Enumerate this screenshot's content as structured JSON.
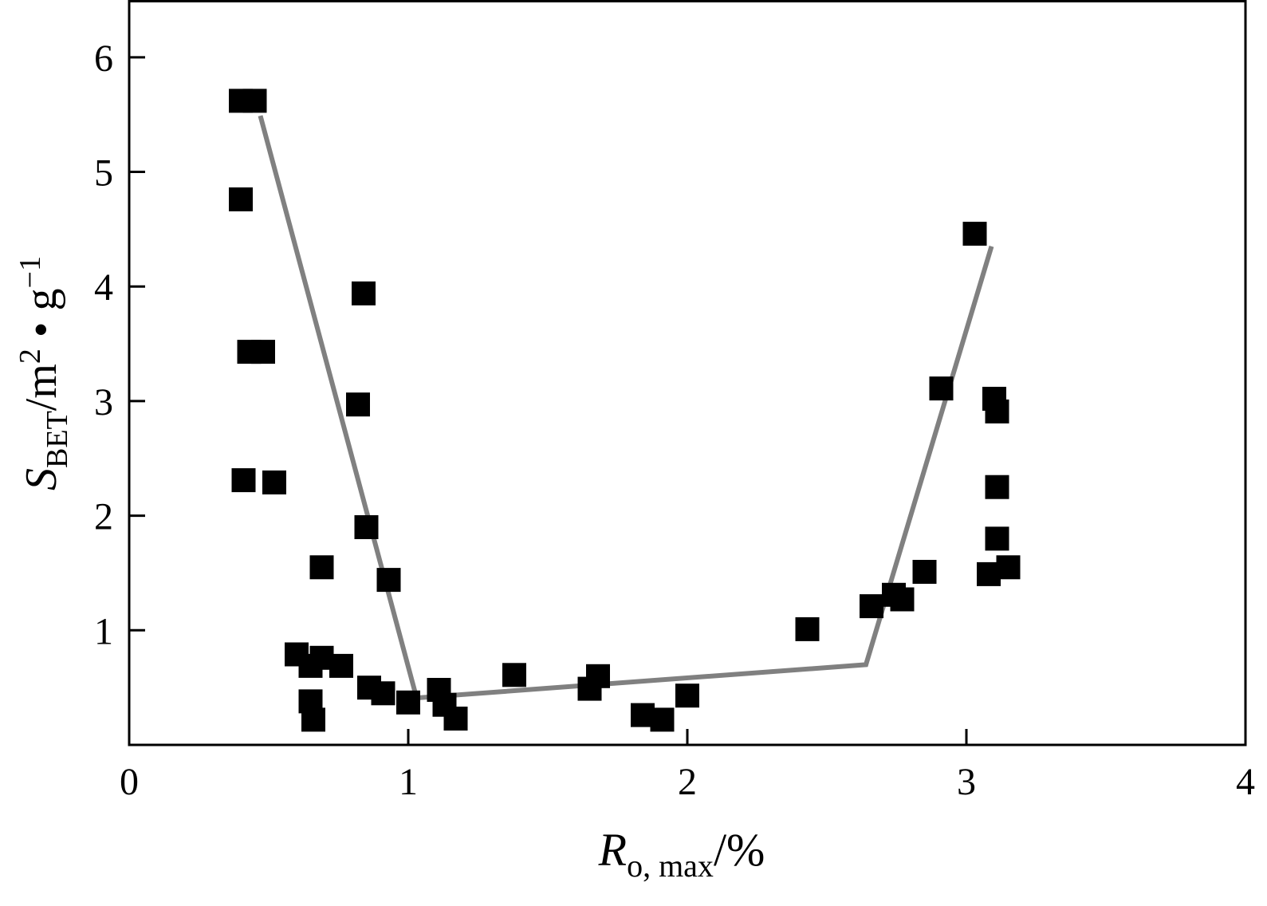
{
  "chart_data": {
    "type": "scatter",
    "xlim": [
      0,
      4
    ],
    "ylim": [
      0,
      6.5
    ],
    "x_ticks": [
      {
        "value": 0,
        "label": "0"
      },
      {
        "value": 1,
        "label": "1"
      },
      {
        "value": 2,
        "label": "2"
      },
      {
        "value": 3,
        "label": "3"
      },
      {
        "value": 4,
        "label": "4"
      }
    ],
    "y_ticks": [
      {
        "value": 1,
        "label": "1"
      },
      {
        "value": 2,
        "label": "2"
      },
      {
        "value": 3,
        "label": "3"
      },
      {
        "value": 4,
        "label": "4"
      },
      {
        "value": 5,
        "label": "5"
      },
      {
        "value": 6,
        "label": "6"
      }
    ],
    "xlabel": {
      "main": "R",
      "sub": "o, max",
      "tail": "/%"
    },
    "ylabel": {
      "main": "S",
      "sub": "BET",
      "mid": "/m",
      "sup1": "2",
      "dot": " • g",
      "sup2": "−1"
    },
    "grid": false,
    "legend": "none",
    "series": [
      {
        "marker": "square",
        "color": "#000000",
        "points": [
          [
            0.4,
            5.62
          ],
          [
            0.45,
            5.62
          ],
          [
            0.4,
            4.76
          ],
          [
            0.43,
            3.43
          ],
          [
            0.48,
            3.43
          ],
          [
            0.41,
            2.31
          ],
          [
            0.52,
            2.29
          ],
          [
            0.84,
            3.94
          ],
          [
            0.82,
            2.97
          ],
          [
            0.85,
            1.9
          ],
          [
            0.69,
            1.55
          ],
          [
            0.93,
            1.44
          ],
          [
            0.6,
            0.79
          ],
          [
            0.69,
            0.76
          ],
          [
            0.76,
            0.69
          ],
          [
            0.65,
            0.69
          ],
          [
            0.65,
            0.38
          ],
          [
            0.66,
            0.22
          ],
          [
            0.86,
            0.5
          ],
          [
            0.91,
            0.45
          ],
          [
            1.0,
            0.37
          ],
          [
            1.11,
            0.48
          ],
          [
            1.13,
            0.35
          ],
          [
            1.17,
            0.23
          ],
          [
            1.38,
            0.61
          ],
          [
            1.68,
            0.6
          ],
          [
            1.65,
            0.49
          ],
          [
            1.84,
            0.26
          ],
          [
            1.91,
            0.22
          ],
          [
            2.0,
            0.43
          ],
          [
            2.43,
            1.01
          ],
          [
            2.66,
            1.21
          ],
          [
            2.74,
            1.31
          ],
          [
            2.77,
            1.27
          ],
          [
            2.85,
            1.51
          ],
          [
            2.91,
            3.11
          ],
          [
            3.03,
            4.46
          ],
          [
            3.1,
            3.02
          ],
          [
            3.11,
            2.91
          ],
          [
            3.11,
            2.25
          ],
          [
            3.11,
            1.8
          ],
          [
            3.08,
            1.49
          ],
          [
            3.15,
            1.55
          ]
        ]
      },
      {
        "type": "line",
        "color": "#808080",
        "points": [
          [
            0.47,
            5.49
          ],
          [
            1.03,
            0.41
          ],
          [
            2.64,
            0.7
          ],
          [
            3.09,
            4.35
          ]
        ]
      }
    ]
  }
}
